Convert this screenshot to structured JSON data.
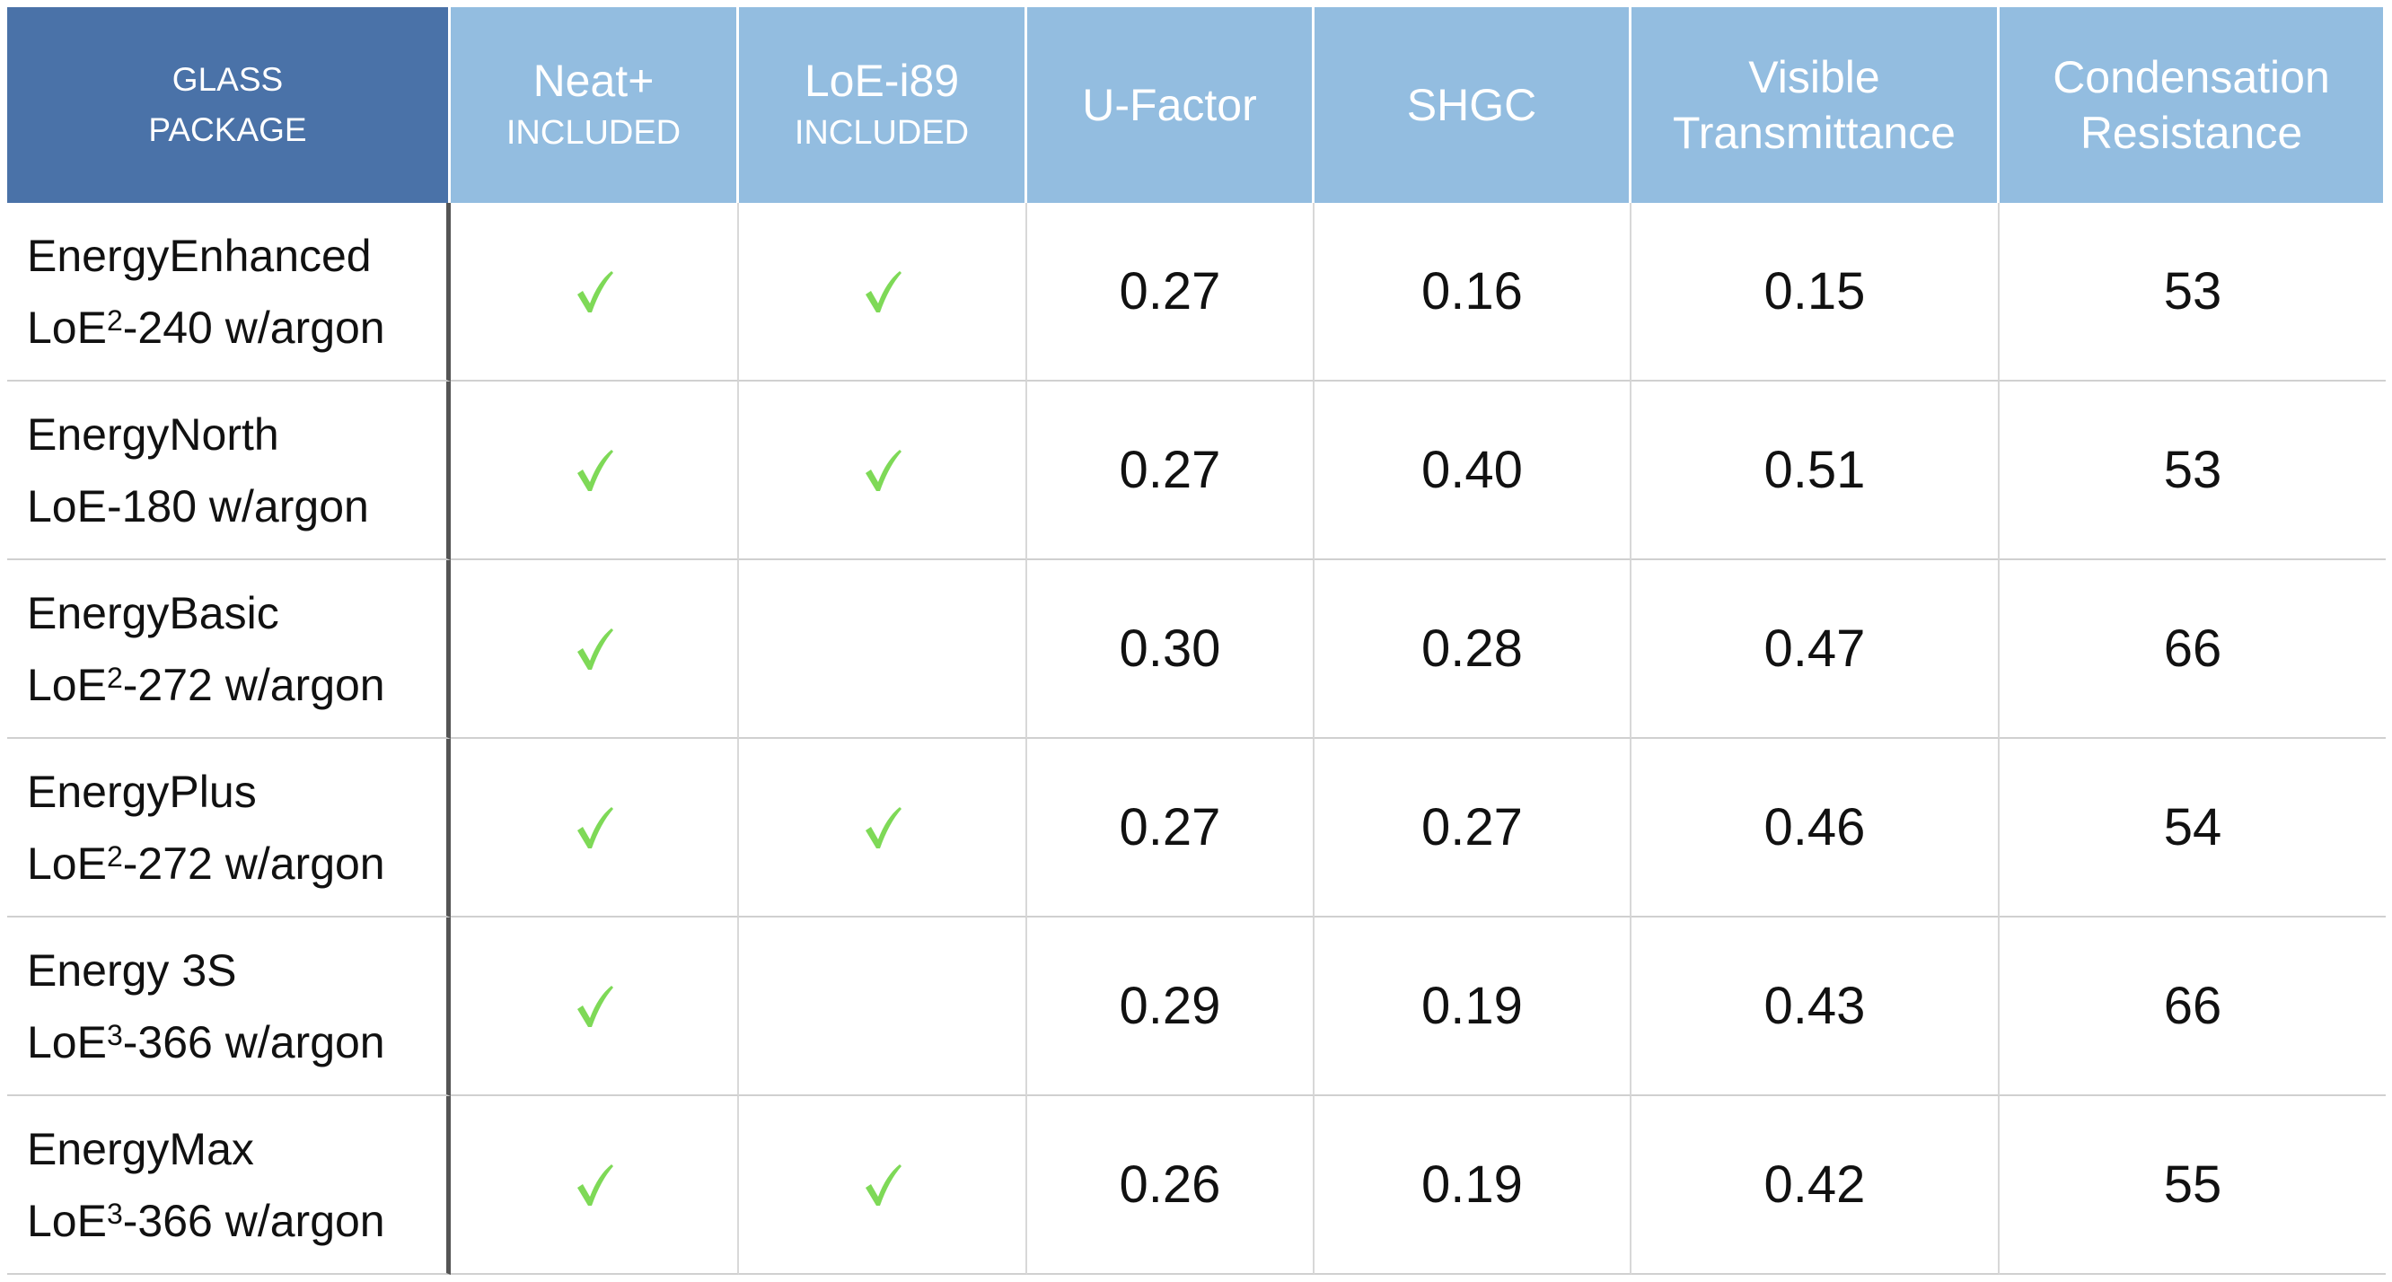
{
  "table": {
    "headers": [
      {
        "title": "GLASS PACKAGE"
      },
      {
        "title": "Neat+",
        "sub": "INCLUDED"
      },
      {
        "title": "LoE-i89",
        "sub": "INCLUDED"
      },
      {
        "title": "U-Factor"
      },
      {
        "title": "SHGC"
      },
      {
        "title": "Visible Transmittance"
      },
      {
        "title": "Condensation Resistance"
      }
    ],
    "rows": [
      {
        "name": "EnergyEnhanced",
        "glass": {
          "base": "LoE",
          "sup": "2",
          "rest": "-240 w/argon"
        },
        "neat": true,
        "loe": true,
        "u": "0.27",
        "shgc": "0.16",
        "vt": "0.15",
        "cr": "53"
      },
      {
        "name": "EnergyNorth",
        "glass": {
          "base": "LoE-180 w/argon"
        },
        "neat": true,
        "loe": true,
        "u": "0.27",
        "shgc": "0.40",
        "vt": "0.51",
        "cr": "53"
      },
      {
        "name": "EnergyBasic",
        "glass": {
          "base": "LoE",
          "sup": "2",
          "rest": "-272 w/argon"
        },
        "neat": true,
        "loe": false,
        "u": "0.30",
        "shgc": "0.28",
        "vt": "0.47",
        "cr": "66"
      },
      {
        "name": "EnergyPlus",
        "glass": {
          "base": "LoE",
          "sup": "2",
          "rest": "-272 w/argon"
        },
        "neat": true,
        "loe": true,
        "u": "0.27",
        "shgc": "0.27",
        "vt": "0.46",
        "cr": "54"
      },
      {
        "name": "Energy 3S",
        "glass": {
          "base": "LoE",
          "sup": "3",
          "rest": "-366 w/argon"
        },
        "neat": true,
        "loe": false,
        "u": "0.29",
        "shgc": "0.19",
        "vt": "0.43",
        "cr": "66"
      },
      {
        "name": "EnergyMax",
        "glass": {
          "base": "LoE",
          "sup": "3",
          "rest": "-366 w/argon"
        },
        "neat": true,
        "loe": true,
        "u": "0.26",
        "shgc": "0.19",
        "vt": "0.42",
        "cr": "55"
      }
    ]
  }
}
